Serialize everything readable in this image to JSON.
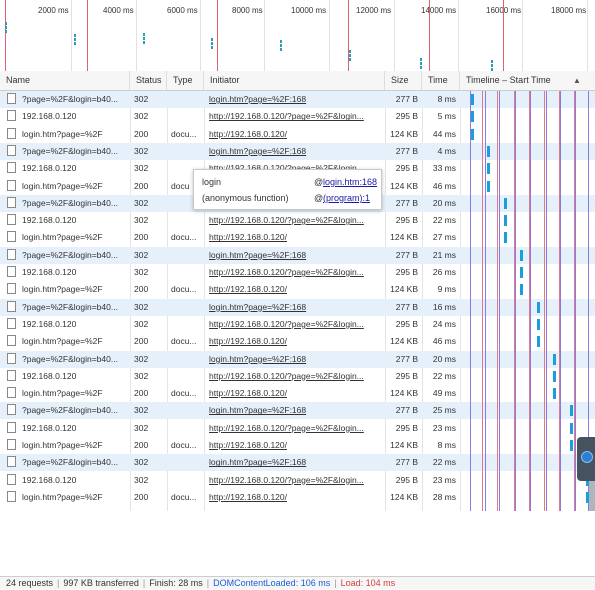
{
  "overview": {
    "ticks": [
      "2000 ms",
      "4000 ms",
      "6000 ms",
      "8000 ms",
      "10000 ms",
      "12000 ms",
      "14000 ms",
      "16000 ms",
      "18000 ms"
    ]
  },
  "columns": {
    "name": "Name",
    "status": "Status",
    "type": "Type",
    "initiator": "Initiator",
    "size": "Size",
    "time": "Time",
    "timeline": "Timeline – Start Time",
    "sort_icon": "▲"
  },
  "rows": [
    {
      "name": "?page=%2F&login=b40...",
      "status": "302",
      "type": "",
      "initiator": "login.htm?page=%2F:168",
      "size": "277 B",
      "time": "8 ms",
      "highlight": true
    },
    {
      "name": "192.168.0.120",
      "status": "302",
      "type": "",
      "initiator": "http://192.168.0.120/?page=%2F&login...",
      "size": "295 B",
      "time": "5 ms",
      "highlight": false
    },
    {
      "name": "login.htm?page=%2F",
      "status": "200",
      "type": "docu...",
      "initiator": "http://192.168.0.120/",
      "size": "124 KB",
      "time": "44 ms",
      "highlight": false
    },
    {
      "name": "?page=%2F&login=b40...",
      "status": "302",
      "type": "",
      "initiator": "login.htm?page=%2F:168",
      "size": "277 B",
      "time": "4 ms",
      "highlight": true
    },
    {
      "name": "192.168.0.120",
      "status": "302",
      "type": "",
      "initiator": "http://192.168.0.120/?page=%2F&login...",
      "size": "295 B",
      "time": "33 ms",
      "highlight": false
    },
    {
      "name": "login.htm?page=%2F",
      "status": "200",
      "type": "docu",
      "initiator": "http://192.168.0.120/",
      "size": "124 KB",
      "time": "46 ms",
      "highlight": false
    },
    {
      "name": "?page=%2F&login=b40...",
      "status": "302",
      "type": "",
      "initiator": "login.htm?page=%2F:168",
      "size": "277 B",
      "time": "20 ms",
      "highlight": true
    },
    {
      "name": "192.168.0.120",
      "status": "302",
      "type": "",
      "initiator": "http://192.168.0.120/?page=%2F&login...",
      "size": "295 B",
      "time": "22 ms",
      "highlight": false
    },
    {
      "name": "login.htm?page=%2F",
      "status": "200",
      "type": "docu...",
      "initiator": "http://192.168.0.120/",
      "size": "124 KB",
      "time": "27 ms",
      "highlight": false
    },
    {
      "name": "?page=%2F&login=b40...",
      "status": "302",
      "type": "",
      "initiator": "login.htm?page=%2F:168",
      "size": "277 B",
      "time": "21 ms",
      "highlight": true
    },
    {
      "name": "192.168.0.120",
      "status": "302",
      "type": "",
      "initiator": "http://192.168.0.120/?page=%2F&login...",
      "size": "295 B",
      "time": "26 ms",
      "highlight": false
    },
    {
      "name": "login.htm?page=%2F",
      "status": "200",
      "type": "docu...",
      "initiator": "http://192.168.0.120/",
      "size": "124 KB",
      "time": "9 ms",
      "highlight": false
    },
    {
      "name": "?page=%2F&login=b40...",
      "status": "302",
      "type": "",
      "initiator": "login.htm?page=%2F:168",
      "size": "277 B",
      "time": "16 ms",
      "highlight": true
    },
    {
      "name": "192.168.0.120",
      "status": "302",
      "type": "",
      "initiator": "http://192.168.0.120/?page=%2F&login...",
      "size": "295 B",
      "time": "24 ms",
      "highlight": false
    },
    {
      "name": "login.htm?page=%2F",
      "status": "200",
      "type": "docu...",
      "initiator": "http://192.168.0.120/",
      "size": "124 KB",
      "time": "46 ms",
      "highlight": false
    },
    {
      "name": "?page=%2F&login=b40...",
      "status": "302",
      "type": "",
      "initiator": "login.htm?page=%2F:168",
      "size": "277 B",
      "time": "20 ms",
      "highlight": true
    },
    {
      "name": "192.168.0.120",
      "status": "302",
      "type": "",
      "initiator": "http://192.168.0.120/?page=%2F&login...",
      "size": "295 B",
      "time": "22 ms",
      "highlight": false
    },
    {
      "name": "login.htm?page=%2F",
      "status": "200",
      "type": "docu...",
      "initiator": "http://192.168.0.120/",
      "size": "124 KB",
      "time": "49 ms",
      "highlight": false
    },
    {
      "name": "?page=%2F&login=b40...",
      "status": "302",
      "type": "",
      "initiator": "login.htm?page=%2F:168",
      "size": "277 B",
      "time": "25 ms",
      "highlight": true
    },
    {
      "name": "192.168.0.120",
      "status": "302",
      "type": "",
      "initiator": "http://192.168.0.120/?page=%2F&login...",
      "size": "295 B",
      "time": "23 ms",
      "highlight": false
    },
    {
      "name": "login.htm?page=%2F",
      "status": "200",
      "type": "docu...",
      "initiator": "http://192.168.0.120/",
      "size": "124 KB",
      "time": "8 ms",
      "highlight": false
    },
    {
      "name": "?page=%2F&login=b40...",
      "status": "302",
      "type": "",
      "initiator": "login.htm?page=%2F:168",
      "size": "277 B",
      "time": "22 ms",
      "highlight": true
    },
    {
      "name": "192.168.0.120",
      "status": "302",
      "type": "",
      "initiator": "http://192.168.0.120/?page=%2F&login...",
      "size": "295 B",
      "time": "23 ms",
      "highlight": false
    },
    {
      "name": "login.htm?page=%2F",
      "status": "200",
      "type": "docu...",
      "initiator": "http://192.168.0.120/",
      "size": "124 KB",
      "time": "28 ms",
      "highlight": false
    }
  ],
  "tooltip": {
    "frames": [
      {
        "fn": "login",
        "at": "@",
        "link": "login.htm:168"
      },
      {
        "fn": "(anonymous function)",
        "at": "@",
        "link": "(program):1"
      }
    ]
  },
  "footer": {
    "requests": "24 requests",
    "transferred": "997 KB transferred",
    "finish": "Finish: 28 ms",
    "dom_content_loaded": "DOMContentLoaded: 106 ms",
    "load": "Load: 104 ms"
  },
  "colors": {
    "dcl": "#1a5fd6",
    "load": "#d43c3c",
    "bar": "#1a9fdc",
    "row_highlight": "#e6f0fb"
  }
}
